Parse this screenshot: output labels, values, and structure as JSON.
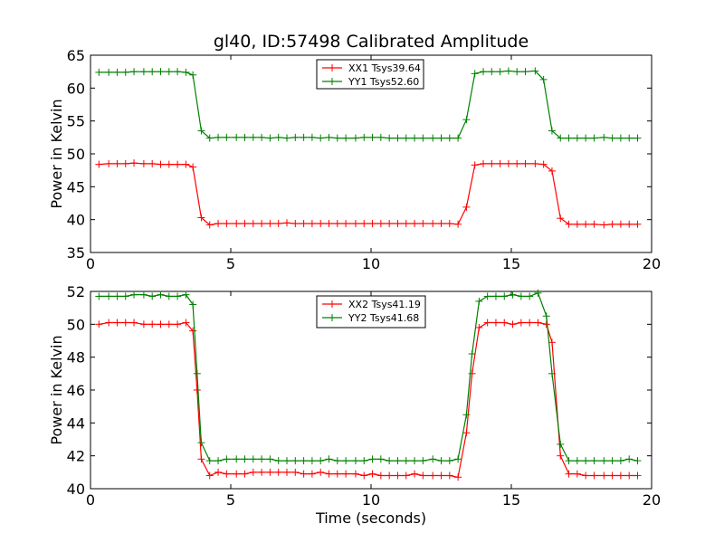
{
  "chart_data": [
    {
      "type": "line",
      "title": "gl40, ID:57498 Calibrated Amplitude",
      "xlabel": "",
      "ylabel": "Power in Kelvin",
      "xlim": [
        0,
        20
      ],
      "ylim": [
        35,
        65
      ],
      "xticks": [
        0,
        5,
        10,
        15,
        20
      ],
      "yticks": [
        35,
        40,
        45,
        50,
        55,
        60,
        65
      ],
      "legend_position": "top-center",
      "series": [
        {
          "name": "XX1 Tsys39.64",
          "color": "#ff0000",
          "x": [
            0.3,
            0.65,
            0.95,
            1.25,
            1.55,
            1.9,
            2.2,
            2.5,
            2.8,
            3.1,
            3.4,
            3.65,
            3.95,
            4.25,
            4.55,
            4.85,
            5.2,
            5.5,
            5.8,
            6.1,
            6.4,
            6.7,
            7.0,
            7.3,
            7.6,
            7.9,
            8.2,
            8.5,
            8.8,
            9.1,
            9.45,
            9.75,
            10.05,
            10.35,
            10.65,
            10.95,
            11.25,
            11.55,
            11.85,
            12.2,
            12.5,
            12.8,
            13.1,
            13.4,
            13.7,
            14.0,
            14.3,
            14.6,
            14.9,
            15.2,
            15.5,
            15.85,
            16.15,
            16.45,
            16.75,
            17.05,
            17.35,
            17.65,
            17.95,
            18.3,
            18.6,
            18.9,
            19.2,
            19.5
          ],
          "values": [
            48.4,
            48.5,
            48.5,
            48.5,
            48.6,
            48.5,
            48.5,
            48.4,
            48.4,
            48.4,
            48.4,
            48.0,
            40.3,
            39.2,
            39.4,
            39.4,
            39.4,
            39.4,
            39.4,
            39.4,
            39.4,
            39.4,
            39.5,
            39.4,
            39.4,
            39.4,
            39.4,
            39.4,
            39.4,
            39.4,
            39.4,
            39.4,
            39.4,
            39.4,
            39.4,
            39.4,
            39.4,
            39.4,
            39.4,
            39.4,
            39.4,
            39.4,
            39.3,
            41.9,
            48.3,
            48.5,
            48.5,
            48.5,
            48.5,
            48.5,
            48.5,
            48.5,
            48.4,
            47.4,
            40.2,
            39.3,
            39.3,
            39.3,
            39.3,
            39.2,
            39.3,
            39.3,
            39.3,
            39.3
          ]
        },
        {
          "name": "YY1 Tsys52.60",
          "color": "#008000",
          "x": [
            0.3,
            0.65,
            0.95,
            1.25,
            1.55,
            1.9,
            2.2,
            2.5,
            2.8,
            3.1,
            3.4,
            3.65,
            3.95,
            4.25,
            4.55,
            4.85,
            5.2,
            5.5,
            5.8,
            6.1,
            6.4,
            6.7,
            7.0,
            7.3,
            7.6,
            7.9,
            8.2,
            8.5,
            8.8,
            9.1,
            9.45,
            9.75,
            10.05,
            10.35,
            10.65,
            10.95,
            11.25,
            11.55,
            11.85,
            12.2,
            12.5,
            12.8,
            13.1,
            13.4,
            13.7,
            14.0,
            14.3,
            14.6,
            14.9,
            15.2,
            15.5,
            15.85,
            16.15,
            16.45,
            16.75,
            17.05,
            17.35,
            17.65,
            17.95,
            18.3,
            18.6,
            18.9,
            19.2,
            19.5
          ],
          "values": [
            62.4,
            62.4,
            62.4,
            62.4,
            62.5,
            62.5,
            62.5,
            62.5,
            62.5,
            62.5,
            62.4,
            62.0,
            53.5,
            52.4,
            52.5,
            52.5,
            52.5,
            52.5,
            52.5,
            52.5,
            52.4,
            52.5,
            52.4,
            52.5,
            52.5,
            52.5,
            52.4,
            52.5,
            52.4,
            52.4,
            52.4,
            52.5,
            52.5,
            52.5,
            52.4,
            52.4,
            52.4,
            52.4,
            52.4,
            52.4,
            52.4,
            52.4,
            52.4,
            55.2,
            62.2,
            62.5,
            62.5,
            62.5,
            62.6,
            62.5,
            62.5,
            62.6,
            61.3,
            53.5,
            52.4,
            52.4,
            52.4,
            52.4,
            52.4,
            52.5,
            52.4,
            52.4,
            52.4,
            52.4
          ]
        }
      ]
    },
    {
      "type": "line",
      "title": "",
      "xlabel": "Time (seconds)",
      "ylabel": "Power in Kelvin",
      "xlim": [
        0,
        20
      ],
      "ylim": [
        40,
        52
      ],
      "xticks": [
        0,
        5,
        10,
        15,
        20
      ],
      "yticks": [
        40,
        42,
        44,
        46,
        48,
        50,
        52
      ],
      "legend_position": "top-center",
      "series": [
        {
          "name": "XX2 Tsys41.19",
          "color": "#ff0000",
          "x": [
            0.3,
            0.65,
            0.95,
            1.25,
            1.55,
            1.9,
            2.2,
            2.5,
            2.8,
            3.1,
            3.4,
            3.65,
            3.8,
            3.95,
            4.25,
            4.55,
            4.85,
            5.2,
            5.5,
            5.8,
            6.1,
            6.4,
            6.7,
            7.0,
            7.3,
            7.6,
            7.9,
            8.2,
            8.5,
            8.8,
            9.1,
            9.45,
            9.75,
            10.05,
            10.35,
            10.65,
            10.95,
            11.25,
            11.55,
            11.85,
            12.2,
            12.5,
            12.8,
            13.1,
            13.4,
            13.6,
            13.85,
            14.15,
            14.45,
            14.75,
            15.05,
            15.35,
            15.65,
            15.95,
            16.25,
            16.45,
            16.75,
            17.05,
            17.35,
            17.65,
            17.95,
            18.3,
            18.6,
            18.9,
            19.2,
            19.5
          ],
          "values": [
            50.0,
            50.1,
            50.1,
            50.1,
            50.1,
            50.0,
            50.0,
            50.0,
            50.0,
            50.0,
            50.1,
            49.6,
            46.0,
            41.8,
            40.8,
            41.0,
            40.9,
            40.9,
            40.9,
            41.0,
            41.0,
            41.0,
            41.0,
            41.0,
            41.0,
            40.9,
            40.9,
            41.0,
            40.9,
            40.9,
            40.9,
            40.9,
            40.8,
            40.9,
            40.8,
            40.8,
            40.8,
            40.8,
            40.9,
            40.8,
            40.8,
            40.8,
            40.8,
            40.7,
            43.4,
            47.0,
            49.8,
            50.1,
            50.1,
            50.1,
            50.0,
            50.1,
            50.1,
            50.1,
            50.0,
            48.9,
            42.0,
            40.9,
            40.9,
            40.8,
            40.8,
            40.8,
            40.8,
            40.8,
            40.8,
            40.8
          ]
        },
        {
          "name": "YY2 Tsys41.68",
          "color": "#008000",
          "x": [
            0.3,
            0.65,
            0.95,
            1.25,
            1.55,
            1.9,
            2.2,
            2.5,
            2.8,
            3.1,
            3.4,
            3.65,
            3.8,
            3.95,
            4.25,
            4.55,
            4.85,
            5.2,
            5.5,
            5.8,
            6.1,
            6.4,
            6.7,
            7.0,
            7.3,
            7.6,
            7.9,
            8.2,
            8.5,
            8.8,
            9.1,
            9.45,
            9.75,
            10.05,
            10.35,
            10.65,
            10.95,
            11.25,
            11.55,
            11.85,
            12.2,
            12.5,
            12.8,
            13.1,
            13.4,
            13.6,
            13.85,
            14.15,
            14.45,
            14.75,
            15.05,
            15.35,
            15.65,
            15.95,
            16.25,
            16.45,
            16.75,
            17.05,
            17.35,
            17.65,
            17.95,
            18.3,
            18.6,
            18.9,
            19.2,
            19.5
          ],
          "values": [
            51.7,
            51.7,
            51.7,
            51.7,
            51.8,
            51.8,
            51.7,
            51.8,
            51.7,
            51.7,
            51.8,
            51.2,
            47.0,
            42.8,
            41.7,
            41.7,
            41.8,
            41.8,
            41.8,
            41.8,
            41.8,
            41.8,
            41.7,
            41.7,
            41.7,
            41.7,
            41.7,
            41.7,
            41.8,
            41.7,
            41.7,
            41.7,
            41.7,
            41.8,
            41.8,
            41.7,
            41.7,
            41.7,
            41.7,
            41.7,
            41.8,
            41.7,
            41.7,
            41.8,
            44.5,
            48.2,
            51.4,
            51.7,
            51.7,
            51.7,
            51.8,
            51.7,
            51.7,
            51.9,
            50.5,
            47.0,
            42.7,
            41.7,
            41.7,
            41.7,
            41.7,
            41.7,
            41.7,
            41.7,
            41.8,
            41.7
          ]
        }
      ]
    }
  ]
}
